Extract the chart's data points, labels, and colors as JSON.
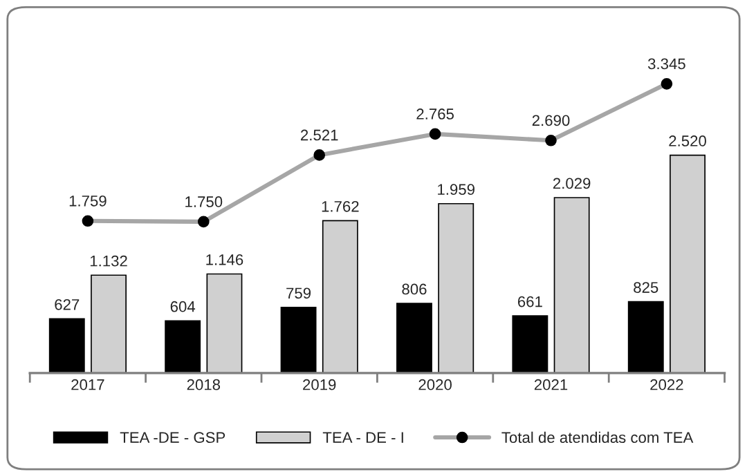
{
  "chart_data": {
    "type": "bar",
    "categories": [
      "2017",
      "2018",
      "2019",
      "2020",
      "2021",
      "2022"
    ],
    "series": [
      {
        "name": "TEA -DE - GSP",
        "color": "#000000",
        "values": [
          627,
          604,
          759,
          806,
          661,
          825
        ],
        "value_labels": [
          "627",
          "604",
          "759",
          "806",
          "661",
          "825"
        ]
      },
      {
        "name": "TEA - DE - I",
        "color": "#d0d0d0",
        "values": [
          1132,
          1146,
          1762,
          1959,
          2029,
          2520
        ],
        "value_labels": [
          "1.132",
          "1.146",
          "1.762",
          "1.959",
          "2.029",
          "2.520"
        ]
      },
      {
        "name": "Total de atendidas com TEA",
        "type": "line",
        "color": "#a6a6a6",
        "marker": "circle",
        "values": [
          1759,
          1750,
          2521,
          2765,
          2690,
          3345
        ],
        "value_labels": [
          "1.759",
          "1.750",
          "2.521",
          "2.765",
          "2.690",
          "3.345"
        ]
      }
    ],
    "legend": "bottom",
    "grid": false
  }
}
